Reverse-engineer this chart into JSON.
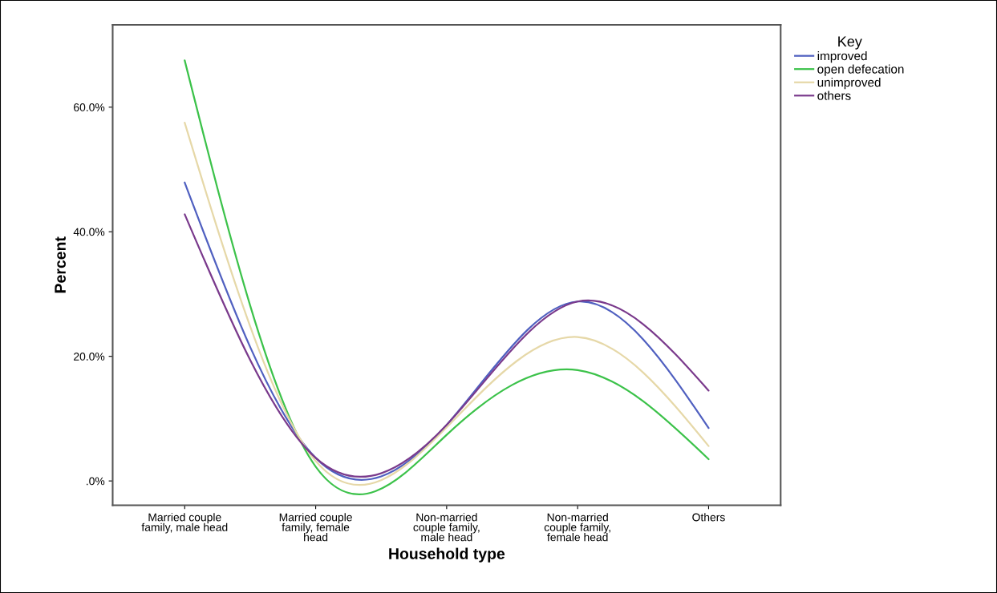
{
  "chart_data": {
    "type": "line",
    "xlabel": "Household type",
    "ylabel": "Percent",
    "legend_title": "Key",
    "categories": [
      "Married couple\nfamily, male head",
      "Married couple\nfamily, female\nhead",
      "Non-married\ncouple family,\nmale head",
      "Non-married\ncouple family,\nfemale head",
      "Others"
    ],
    "series": [
      {
        "name": "improved",
        "color": "#5060c0",
        "values": [
          47.9,
          3.7,
          9.0,
          28.8,
          8.5
        ]
      },
      {
        "name": "open defecation",
        "color": "#3cc24a",
        "values": [
          67.5,
          2.3,
          7.4,
          17.8,
          3.5
        ]
      },
      {
        "name": "unimproved",
        "color": "#e6d8a8",
        "values": [
          57.5,
          3.2,
          8.6,
          23.1,
          5.6
        ]
      },
      {
        "name": "others",
        "color": "#7a3a8c",
        "values": [
          42.8,
          3.7,
          9.0,
          28.8,
          14.5
        ]
      }
    ],
    "ylim": [
      -3.9,
      73.2
    ],
    "yticks": [
      {
        "value": 0,
        "label": ".0%"
      },
      {
        "value": 20,
        "label": "20.0%"
      },
      {
        "value": 40,
        "label": "40.0%"
      },
      {
        "value": 60,
        "label": "60.0%"
      }
    ],
    "grid": false,
    "legend": "top right",
    "marker": "none",
    "line_style": "solid"
  }
}
